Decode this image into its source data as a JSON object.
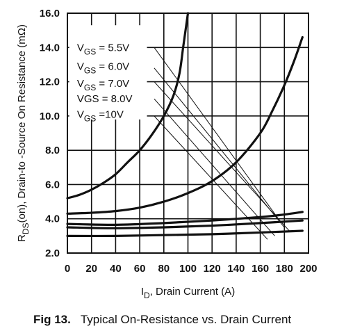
{
  "caption": {
    "number": "Fig 13.",
    "text": "Typical On-Resistance vs. Drain Current"
  },
  "chart_data": {
    "type": "line",
    "title": "",
    "xlabel": {
      "main": "I",
      "sub": "D",
      "rest": ", Drain Current (A)"
    },
    "ylabel": {
      "main": "R",
      "sub": "DS",
      "rest": "(on),  Drain-to -Source On Resistance (mΩ)"
    },
    "xlim": [
      0,
      200
    ],
    "ylim": [
      2.0,
      16.0
    ],
    "x_ticks": [
      "0",
      "20",
      "40",
      "60",
      "80",
      "100",
      "120",
      "140",
      "160",
      "180",
      "200"
    ],
    "y_ticks": [
      "2.0",
      "4.0",
      "6.0",
      "8.0",
      "10.0",
      "12.0",
      "14.0",
      "16.0"
    ],
    "grid": true,
    "legend_position": "top-left",
    "series": [
      {
        "name": "VGS = 5.5V",
        "label_parts": [
          [
            "V",
            "normal"
          ],
          [
            "GS",
            "sub"
          ],
          [
            " = 5.5V",
            "normal"
          ]
        ],
        "x": [
          0,
          10,
          20,
          30,
          40,
          50,
          60,
          70,
          80,
          88,
          93,
          96,
          98,
          100
        ],
        "y": [
          5.2,
          5.4,
          5.7,
          6.1,
          6.6,
          7.3,
          8.0,
          8.9,
          10.0,
          11.2,
          12.5,
          14.0,
          15.0,
          16.0
        ]
      },
      {
        "name": "VGS = 6.0V",
        "label_parts": [
          [
            "V",
            "normal"
          ],
          [
            "GS",
            "sub"
          ],
          [
            " = 6.0V",
            "normal"
          ]
        ],
        "x": [
          0,
          20,
          40,
          60,
          80,
          100,
          120,
          140,
          160,
          170,
          180,
          188,
          195
        ],
        "y": [
          4.3,
          4.35,
          4.45,
          4.65,
          5.0,
          5.5,
          6.2,
          7.3,
          9.0,
          10.3,
          11.8,
          13.2,
          14.6
        ]
      },
      {
        "name": "VGS = 7.0V",
        "label_parts": [
          [
            "V",
            "normal"
          ],
          [
            "GS",
            "sub"
          ],
          [
            " = 7.0V",
            "normal"
          ]
        ],
        "x": [
          0,
          40,
          80,
          120,
          160,
          180,
          195
        ],
        "y": [
          3.7,
          3.65,
          3.75,
          3.9,
          4.1,
          4.25,
          4.4
        ]
      },
      {
        "name": "VGS = 8.0V",
        "label_parts": [
          [
            "VGS = 8.0V",
            "normal"
          ]
        ],
        "x": [
          0,
          40,
          80,
          120,
          160,
          195
        ],
        "y": [
          3.5,
          3.45,
          3.5,
          3.6,
          3.75,
          3.9
        ]
      },
      {
        "name": "VGS =10V",
        "label_parts": [
          [
            "V",
            "normal"
          ],
          [
            "GS",
            "sub"
          ],
          [
            " =10V",
            "normal"
          ]
        ],
        "x": [
          0,
          40,
          80,
          120,
          160,
          195
        ],
        "y": [
          3.0,
          3.0,
          3.05,
          3.1,
          3.2,
          3.3
        ]
      }
    ],
    "leader_lines": [
      {
        "from": [
          72,
          14.0
        ],
        "to": [
          176,
          3.9
        ]
      },
      {
        "from": [
          72,
          12.8
        ],
        "to": [
          180,
          3.5
        ]
      },
      {
        "from": [
          72,
          12.0
        ],
        "to": [
          184,
          3.3
        ]
      },
      {
        "from": [
          72,
          11.0
        ],
        "to": [
          172,
          3.0
        ]
      },
      {
        "from": [
          72,
          10.0
        ],
        "to": [
          166,
          2.8
        ]
      }
    ]
  }
}
